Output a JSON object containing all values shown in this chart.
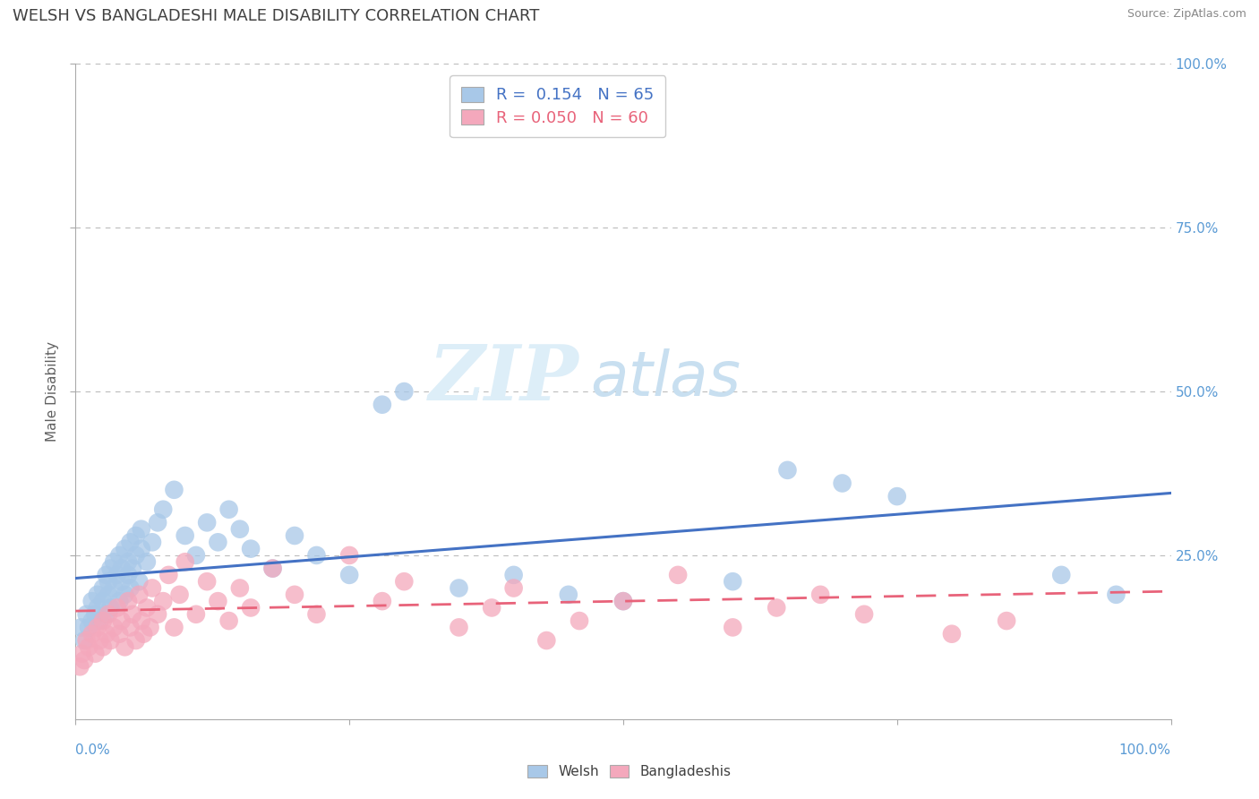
{
  "title": "WELSH VS BANGLADESHI MALE DISABILITY CORRELATION CHART",
  "source_text": "Source: ZipAtlas.com",
  "ylabel": "Male Disability",
  "legend_labels": [
    "Welsh",
    "Bangladeshis"
  ],
  "legend_R": [
    "0.154",
    "0.050"
  ],
  "legend_N": [
    "65",
    "60"
  ],
  "welsh_color": "#A8C8E8",
  "bangladeshi_color": "#F4A8BC",
  "line_welsh_color": "#4472C4",
  "line_bangladeshi_color": "#E8637A",
  "background_color": "#FFFFFF",
  "grid_color": "#BBBBBB",
  "title_color": "#404040",
  "axis_label_color": "#5B9BD5",
  "watermark_zip": "ZIP",
  "watermark_atlas": "atlas",
  "welsh_x": [
    0.005,
    0.008,
    0.01,
    0.012,
    0.015,
    0.015,
    0.018,
    0.02,
    0.02,
    0.022,
    0.025,
    0.025,
    0.028,
    0.028,
    0.03,
    0.03,
    0.032,
    0.032,
    0.035,
    0.035,
    0.038,
    0.04,
    0.04,
    0.042,
    0.042,
    0.045,
    0.045,
    0.048,
    0.048,
    0.05,
    0.05,
    0.052,
    0.055,
    0.055,
    0.058,
    0.06,
    0.06,
    0.065,
    0.07,
    0.075,
    0.08,
    0.09,
    0.1,
    0.11,
    0.12,
    0.13,
    0.14,
    0.15,
    0.16,
    0.18,
    0.2,
    0.22,
    0.25,
    0.28,
    0.3,
    0.35,
    0.4,
    0.45,
    0.5,
    0.6,
    0.65,
    0.7,
    0.75,
    0.9,
    0.95
  ],
  "welsh_y": [
    0.14,
    0.12,
    0.16,
    0.14,
    0.15,
    0.18,
    0.16,
    0.17,
    0.19,
    0.15,
    0.18,
    0.2,
    0.16,
    0.22,
    0.19,
    0.21,
    0.17,
    0.23,
    0.2,
    0.24,
    0.22,
    0.18,
    0.25,
    0.21,
    0.23,
    0.19,
    0.26,
    0.22,
    0.24,
    0.2,
    0.27,
    0.23,
    0.25,
    0.28,
    0.21,
    0.26,
    0.29,
    0.24,
    0.27,
    0.3,
    0.32,
    0.35,
    0.28,
    0.25,
    0.3,
    0.27,
    0.32,
    0.29,
    0.26,
    0.23,
    0.28,
    0.25,
    0.22,
    0.48,
    0.5,
    0.2,
    0.22,
    0.19,
    0.18,
    0.21,
    0.38,
    0.36,
    0.34,
    0.22,
    0.19
  ],
  "bangladeshi_x": [
    0.004,
    0.006,
    0.008,
    0.01,
    0.012,
    0.015,
    0.018,
    0.02,
    0.022,
    0.025,
    0.025,
    0.028,
    0.03,
    0.032,
    0.035,
    0.038,
    0.04,
    0.042,
    0.045,
    0.048,
    0.05,
    0.052,
    0.055,
    0.058,
    0.06,
    0.062,
    0.065,
    0.068,
    0.07,
    0.075,
    0.08,
    0.085,
    0.09,
    0.095,
    0.1,
    0.11,
    0.12,
    0.13,
    0.14,
    0.15,
    0.16,
    0.18,
    0.2,
    0.22,
    0.25,
    0.28,
    0.3,
    0.35,
    0.38,
    0.4,
    0.43,
    0.46,
    0.5,
    0.55,
    0.6,
    0.64,
    0.68,
    0.72,
    0.8,
    0.85
  ],
  "bangladeshi_y": [
    0.08,
    0.1,
    0.09,
    0.12,
    0.11,
    0.13,
    0.1,
    0.14,
    0.12,
    0.11,
    0.15,
    0.13,
    0.16,
    0.12,
    0.14,
    0.17,
    0.13,
    0.15,
    0.11,
    0.18,
    0.14,
    0.16,
    0.12,
    0.19,
    0.15,
    0.13,
    0.17,
    0.14,
    0.2,
    0.16,
    0.18,
    0.22,
    0.14,
    0.19,
    0.24,
    0.16,
    0.21,
    0.18,
    0.15,
    0.2,
    0.17,
    0.23,
    0.19,
    0.16,
    0.25,
    0.18,
    0.21,
    0.14,
    0.17,
    0.2,
    0.12,
    0.15,
    0.18,
    0.22,
    0.14,
    0.17,
    0.19,
    0.16,
    0.13,
    0.15
  ],
  "xlim": [
    0.0,
    1.0
  ],
  "ylim": [
    0.0,
    1.0
  ],
  "right_ytick_labels": [
    "100.0%",
    "75.0%",
    "50.0%",
    "25.0%"
  ],
  "right_ytick_positions": [
    1.0,
    0.75,
    0.5,
    0.25
  ]
}
